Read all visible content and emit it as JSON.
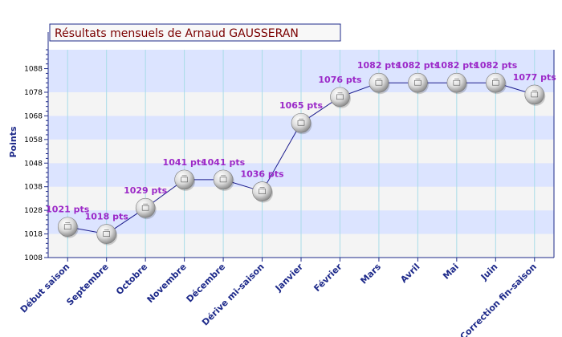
{
  "chart_data": {
    "type": "line",
    "title": "Résultats mensuels de Arnaud GAUSSERAN",
    "ylabel": "Points",
    "xlabel": "",
    "ylim": [
      1008,
      1096
    ],
    "yticks": [
      1008,
      1018,
      1028,
      1038,
      1048,
      1058,
      1068,
      1078,
      1088
    ],
    "categories": [
      "Début saison",
      "Septembre",
      "Octobre",
      "Novembre",
      "Décembre",
      "Dérive mi-saison",
      "Janvier",
      "Février",
      "Mars",
      "Avril",
      "Mai",
      "Juin",
      "Correction fin-saison"
    ],
    "values": [
      1021,
      1018,
      1029,
      1041,
      1041,
      1036,
      1065,
      1076,
      1082,
      1082,
      1082,
      1082,
      1077
    ],
    "data_labels": [
      "1021 pts",
      "1018 pts",
      "1029 pts",
      "1041 pts",
      "1041 pts",
      "1036 pts",
      "1065 pts",
      "1076 pts",
      "1082 pts",
      "1082 pts",
      "1082 pts",
      "1082 pts",
      "1077 pts"
    ],
    "grid": true,
    "legend": "none",
    "colors": {
      "line": "#1a1a8c",
      "band_a": "#dce4ff",
      "band_b": "#f4f4f4",
      "vgrid": "#a8dce8",
      "title_text": "#7a0000",
      "data_label": "#9b28c8",
      "axis_text": "#1e2a8a"
    },
    "marker_icon": "ping-pong-ball-icon"
  }
}
